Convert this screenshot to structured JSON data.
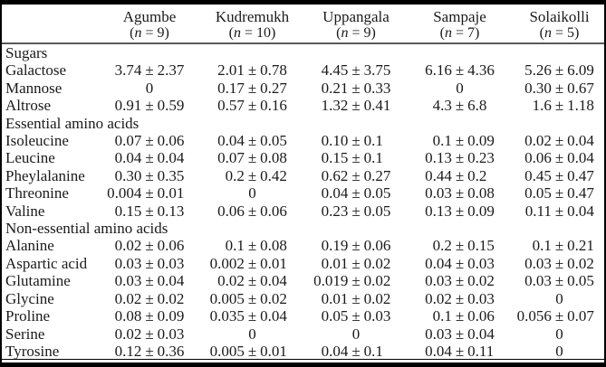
{
  "table": {
    "columns": [
      {
        "name": "Agumbe",
        "n": "(n = 9)"
      },
      {
        "name": "Kudremukh",
        "n": "(n = 10)"
      },
      {
        "name": "Uppangala",
        "n": "(n = 9)"
      },
      {
        "name": "Sampaje",
        "n": "(n = 7)"
      },
      {
        "name": "Solaikolli",
        "n": "(n = 5)"
      }
    ],
    "sections": [
      {
        "label": "Sugars",
        "rows": [
          {
            "label": "Galactose",
            "values": [
              "3.74 ± 2.37",
              "2.01 ± 0.78",
              "4.45 ± 3.75",
              "6.16 ± 4.36",
              "5.26 ± 6.09"
            ]
          },
          {
            "label": "Mannose",
            "values": [
              "0",
              "0.17 ± 0.27",
              "0.21 ± 0.33",
              "0",
              "0.30 ± 0.67"
            ]
          },
          {
            "label": "Altrose",
            "values": [
              "0.91 ± 0.59",
              "0.57 ± 0.16",
              "1.32 ± 0.41",
              "4.3 ± 6.8",
              "1.6 ± 1.18"
            ]
          }
        ]
      },
      {
        "label": "Essential amino acids",
        "rows": [
          {
            "label": "Isoleucine",
            "values": [
              "0.07 ± 0.06",
              "0.04 ± 0.05",
              "0.10 ± 0.1",
              "0.1 ± 0.09",
              "0.02 ± 0.04"
            ]
          },
          {
            "label": "Leucine",
            "values": [
              "0.04 ± 0.04",
              "0.07 ± 0.08",
              "0.15 ± 0.1",
              "0.13 ± 0.23",
              "0.06 ± 0.04"
            ]
          },
          {
            "label": "Pheylalanine",
            "values": [
              "0.30 ± 0.35",
              "0.2 ± 0.42",
              "0.62 ± 0.27",
              "0.44 ± 0.2",
              "0.45 ± 0.47"
            ]
          },
          {
            "label": "Threonine",
            "values": [
              "0.004 ± 0.01",
              "0",
              "0.04 ± 0.05",
              "0.03 ± 0.08",
              "0.05 ± 0.47"
            ]
          },
          {
            "label": "Valine",
            "values": [
              "0.15 ± 0.13",
              "0.06 ± 0.06",
              "0.23 ± 0.05",
              "0.13 ± 0.09",
              "0.11 ± 0.04"
            ]
          }
        ]
      },
      {
        "label": "Non-essential amino acids",
        "rows": [
          {
            "label": "Alanine",
            "values": [
              "0.02 ± 0.06",
              "0.1 ± 0.08",
              "0.19 ± 0.06",
              "0.2 ± 0.15",
              "0.1 ± 0.21"
            ]
          },
          {
            "label": "Aspartic acid",
            "values": [
              "0.03 ± 0.03",
              "0.002 ± 0.01",
              "0.01 ± 0.02",
              "0.04 ± 0.03",
              "0.03 ± 0.02"
            ]
          },
          {
            "label": "Glutamine",
            "values": [
              "0.03 ± 0.04",
              "0.02 ± 0.04",
              "0.019 ± 0.02",
              "0.03 ± 0.02",
              "0.03 ± 0.05"
            ]
          },
          {
            "label": "Glycine",
            "values": [
              "0.02 ± 0.02",
              "0.005 ± 0.02",
              "0.01 ± 0.02",
              "0.02 ± 0.03",
              "0"
            ]
          },
          {
            "label": "Proline",
            "values": [
              "0.08 ± 0.09",
              "0.035 ± 0.04",
              "0.05 ± 0.03",
              "0.1 ± 0.06",
              "0.056 ± 0.07"
            ]
          },
          {
            "label": "Serine",
            "values": [
              "0.02 ± 0.03",
              "0",
              "0",
              "0.03 ± 0.04",
              "0"
            ]
          },
          {
            "label": "Tyrosine",
            "values": [
              "0.12 ± 0.36",
              "0.005 ± 0.01",
              "0.04 ± 0.1",
              "0.04 ± 0.11",
              "0"
            ]
          }
        ]
      }
    ],
    "colors": {
      "frame_rule": "#000000",
      "header_rule": "#595959",
      "text": "#1a1a1a",
      "background": "#ffffff"
    }
  }
}
